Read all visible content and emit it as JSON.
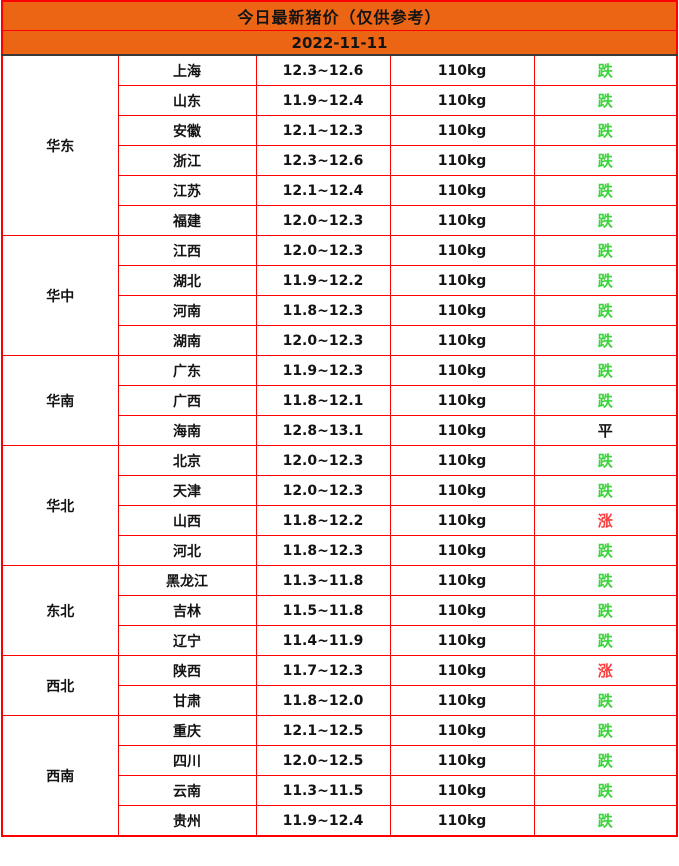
{
  "header": {
    "title": "今日最新猪价（仅供参考）",
    "date": "2022-11-11"
  },
  "colors": {
    "header_bg": "#ec6514",
    "grid_border": "#fe0000",
    "date_underline": "#3a3a3a",
    "trend_down_green": "#3cd43c",
    "trend_up_red": "#fa3e3e",
    "trend_flat_black": "#141414"
  },
  "table": {
    "regions": [
      {
        "name": "华东",
        "rows": [
          {
            "province": "上海",
            "price": "12.3~12.6",
            "weight": "110kg",
            "trend": "跌",
            "trend_type": "down"
          },
          {
            "province": "山东",
            "price": "11.9~12.4",
            "weight": "110kg",
            "trend": "跌",
            "trend_type": "down"
          },
          {
            "province": "安徽",
            "price": "12.1~12.3",
            "weight": "110kg",
            "trend": "跌",
            "trend_type": "down"
          },
          {
            "province": "浙江",
            "price": "12.3~12.6",
            "weight": "110kg",
            "trend": "跌",
            "trend_type": "down"
          },
          {
            "province": "江苏",
            "price": "12.1~12.4",
            "weight": "110kg",
            "trend": "跌",
            "trend_type": "down"
          },
          {
            "province": "福建",
            "price": "12.0~12.3",
            "weight": "110kg",
            "trend": "跌",
            "trend_type": "down"
          }
        ]
      },
      {
        "name": "华中",
        "rows": [
          {
            "province": "江西",
            "price": "12.0~12.3",
            "weight": "110kg",
            "trend": "跌",
            "trend_type": "down"
          },
          {
            "province": "湖北",
            "price": "11.9~12.2",
            "weight": "110kg",
            "trend": "跌",
            "trend_type": "down"
          },
          {
            "province": "河南",
            "price": "11.8~12.3",
            "weight": "110kg",
            "trend": "跌",
            "trend_type": "down"
          },
          {
            "province": "湖南",
            "price": "12.0~12.3",
            "weight": "110kg",
            "trend": "跌",
            "trend_type": "down"
          }
        ]
      },
      {
        "name": "华南",
        "rows": [
          {
            "province": "广东",
            "price": "11.9~12.3",
            "weight": "110kg",
            "trend": "跌",
            "trend_type": "down"
          },
          {
            "province": "广西",
            "price": "11.8~12.1",
            "weight": "110kg",
            "trend": "跌",
            "trend_type": "down"
          },
          {
            "province": "海南",
            "price": "12.8~13.1",
            "weight": "110kg",
            "trend": "平",
            "trend_type": "flat"
          }
        ]
      },
      {
        "name": "华北",
        "rows": [
          {
            "province": "北京",
            "price": "12.0~12.3",
            "weight": "110kg",
            "trend": "跌",
            "trend_type": "down"
          },
          {
            "province": "天津",
            "price": "12.0~12.3",
            "weight": "110kg",
            "trend": "跌",
            "trend_type": "down"
          },
          {
            "province": "山西",
            "price": "11.8~12.2",
            "weight": "110kg",
            "trend": "涨",
            "trend_type": "up"
          },
          {
            "province": "河北",
            "price": "11.8~12.3",
            "weight": "110kg",
            "trend": "跌",
            "trend_type": "down"
          }
        ]
      },
      {
        "name": "东北",
        "rows": [
          {
            "province": "黑龙江",
            "price": "11.3~11.8",
            "weight": "110kg",
            "trend": "跌",
            "trend_type": "down"
          },
          {
            "province": "吉林",
            "price": "11.5~11.8",
            "weight": "110kg",
            "trend": "跌",
            "trend_type": "down"
          },
          {
            "province": "辽宁",
            "price": "11.4~11.9",
            "weight": "110kg",
            "trend": "跌",
            "trend_type": "down"
          }
        ]
      },
      {
        "name": "西北",
        "rows": [
          {
            "province": "陕西",
            "price": "11.7~12.3",
            "weight": "110kg",
            "trend": "涨",
            "trend_type": "up"
          },
          {
            "province": "甘肃",
            "price": "11.8~12.0",
            "weight": "110kg",
            "trend": "跌",
            "trend_type": "down"
          }
        ]
      },
      {
        "name": "西南",
        "rows": [
          {
            "province": "重庆",
            "price": "12.1~12.5",
            "weight": "110kg",
            "trend": "跌",
            "trend_type": "down"
          },
          {
            "province": "四川",
            "price": "12.0~12.5",
            "weight": "110kg",
            "trend": "跌",
            "trend_type": "down"
          },
          {
            "province": "云南",
            "price": "11.3~11.5",
            "weight": "110kg",
            "trend": "跌",
            "trend_type": "down"
          },
          {
            "province": "贵州",
            "price": "11.9~12.4",
            "weight": "110kg",
            "trend": "跌",
            "trend_type": "down"
          }
        ]
      }
    ]
  },
  "chart_data": {
    "type": "table",
    "title": "今日最新猪价（仅供参考）",
    "subtitle": "2022-11-11",
    "rows": [
      [
        "华东",
        "上海",
        "12.3~12.6",
        "110kg",
        "跌"
      ],
      [
        "华东",
        "山东",
        "11.9~12.4",
        "110kg",
        "跌"
      ],
      [
        "华东",
        "安徽",
        "12.1~12.3",
        "110kg",
        "跌"
      ],
      [
        "华东",
        "浙江",
        "12.3~12.6",
        "110kg",
        "跌"
      ],
      [
        "华东",
        "江苏",
        "12.1~12.4",
        "110kg",
        "跌"
      ],
      [
        "华东",
        "福建",
        "12.0~12.3",
        "110kg",
        "跌"
      ],
      [
        "华中",
        "江西",
        "12.0~12.3",
        "110kg",
        "跌"
      ],
      [
        "华中",
        "湖北",
        "11.9~12.2",
        "110kg",
        "跌"
      ],
      [
        "华中",
        "河南",
        "11.8~12.3",
        "110kg",
        "跌"
      ],
      [
        "华中",
        "湖南",
        "12.0~12.3",
        "110kg",
        "跌"
      ],
      [
        "华南",
        "广东",
        "11.9~12.3",
        "110kg",
        "跌"
      ],
      [
        "华南",
        "广西",
        "11.8~12.1",
        "110kg",
        "跌"
      ],
      [
        "华南",
        "海南",
        "12.8~13.1",
        "110kg",
        "平"
      ],
      [
        "华北",
        "北京",
        "12.0~12.3",
        "110kg",
        "跌"
      ],
      [
        "华北",
        "天津",
        "12.0~12.3",
        "110kg",
        "跌"
      ],
      [
        "华北",
        "山西",
        "11.8~12.2",
        "110kg",
        "涨"
      ],
      [
        "华北",
        "河北",
        "11.8~12.3",
        "110kg",
        "跌"
      ],
      [
        "东北",
        "黑龙江",
        "11.3~11.8",
        "110kg",
        "跌"
      ],
      [
        "东北",
        "吉林",
        "11.5~11.8",
        "110kg",
        "跌"
      ],
      [
        "东北",
        "辽宁",
        "11.4~11.9",
        "110kg",
        "跌"
      ],
      [
        "西北",
        "陕西",
        "11.7~12.3",
        "110kg",
        "涨"
      ],
      [
        "西北",
        "甘肃",
        "11.8~12.0",
        "110kg",
        "跌"
      ],
      [
        "西南",
        "重庆",
        "12.1~12.5",
        "110kg",
        "跌"
      ],
      [
        "西南",
        "四川",
        "12.0~12.5",
        "110kg",
        "跌"
      ],
      [
        "西南",
        "云南",
        "11.3~11.5",
        "110kg",
        "跌"
      ],
      [
        "西南",
        "贵州",
        "11.9~12.4",
        "110kg",
        "跌"
      ]
    ]
  }
}
